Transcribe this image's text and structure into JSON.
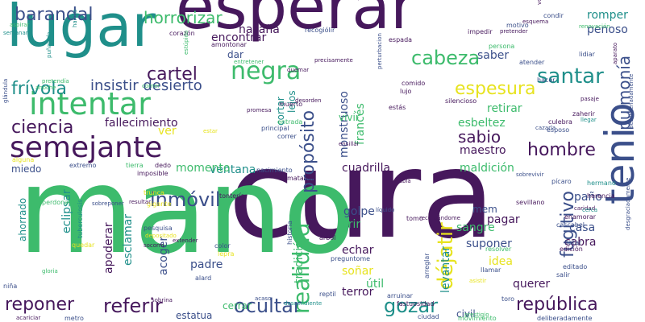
{
  "palette": {
    "dark_purple": "#46185c",
    "indigo": "#3b4f8a",
    "teal": "#1f8f8a",
    "green": "#3dbb6c",
    "lime": "#93d14b",
    "yellow": "#e7e31f"
  },
  "words": [
    {
      "text": "cura",
      "weight": 100,
      "color": "#46185c"
    },
    {
      "text": "mano",
      "weight": 96,
      "color": "#3dbb6c"
    },
    {
      "text": "esperar",
      "weight": 62,
      "color": "#46185c"
    },
    {
      "text": "lugar",
      "weight": 58,
      "color": "#1f8f8a"
    },
    {
      "text": "tenio",
      "weight": 40,
      "color": "#3b4f8a"
    },
    {
      "text": "intentar",
      "weight": 36,
      "color": "#3dbb6c"
    },
    {
      "text": "semejante",
      "weight": 34,
      "color": "#46185c"
    },
    {
      "text": "realidad",
      "weight": 26,
      "color": "#3dbb6c"
    },
    {
      "text": "déjatir",
      "weight": 24,
      "color": "#e7e31f"
    },
    {
      "text": "negra",
      "weight": 24,
      "color": "#3dbb6c"
    },
    {
      "text": "santar",
      "weight": 22,
      "color": "#1f8f8a"
    },
    {
      "text": "cabeza",
      "weight": 20,
      "color": "#3dbb6c"
    },
    {
      "text": "barandal",
      "weight": 20,
      "color": "#3b4f8a"
    },
    {
      "text": "ciencia",
      "weight": 20,
      "color": "#46185c"
    },
    {
      "text": "frívola",
      "weight": 20,
      "color": "#1f8f8a"
    },
    {
      "text": "cartel",
      "weight": 20,
      "color": "#46185c"
    },
    {
      "text": "pulmonía",
      "weight": 20,
      "color": "#3b4f8a"
    },
    {
      "text": "hombre",
      "weight": 20,
      "color": "#46185c"
    },
    {
      "text": "inmóvil",
      "weight": 20,
      "color": "#3b4f8a"
    },
    {
      "text": "referir",
      "weight": 20,
      "color": "#46185c"
    },
    {
      "text": "ocultar",
      "weight": 20,
      "color": "#3b4f8a"
    },
    {
      "text": "gozar",
      "weight": 20,
      "color": "#1f8f8a"
    },
    {
      "text": "república",
      "weight": 20,
      "color": "#46185c"
    },
    {
      "text": "reponer",
      "weight": 20,
      "color": "#46185c"
    },
    {
      "text": "fugitivo",
      "weight": 20,
      "color": "#3b4f8a"
    },
    {
      "text": "propósito",
      "weight": 20,
      "color": "#3b4f8a"
    },
    {
      "text": "espesura",
      "weight": 18,
      "color": "#e7e31f"
    },
    {
      "text": "horrorizar",
      "weight": 18,
      "color": "#3dbb6c"
    },
    {
      "text": "sabio",
      "weight": 17,
      "color": "#46185c"
    },
    {
      "text": "insistir desierto",
      "weight": 15,
      "color": "#3b4f8a"
    },
    {
      "text": "hazaña",
      "weight": 13,
      "color": "#46185c"
    },
    {
      "text": "encontrar",
      "weight": 13,
      "color": "#46185c"
    },
    {
      "text": "fallecimiento",
      "weight": 13,
      "color": "#46185c"
    },
    {
      "text": "esbeltez",
      "weight": 13,
      "color": "#3dbb6c"
    },
    {
      "text": "maestro",
      "weight": 13,
      "color": "#46185c"
    },
    {
      "text": "monstruoso",
      "weight": 13,
      "color": "#3b4f8a"
    },
    {
      "text": "francés",
      "weight": 13,
      "color": "#3dbb6c"
    },
    {
      "text": "retirar",
      "weight": 13,
      "color": "#3dbb6c"
    },
    {
      "text": "saber",
      "weight": 12,
      "color": "#3b4f8a"
    },
    {
      "text": "penoso",
      "weight": 12,
      "color": "#3b4f8a"
    },
    {
      "text": "romper",
      "weight": 12,
      "color": "#1f8f8a"
    },
    {
      "text": "cuadrilla",
      "weight": 12,
      "color": "#46185c"
    },
    {
      "text": "maldición",
      "weight": 12,
      "color": "#3dbb6c"
    },
    {
      "text": "ventana",
      "weight": 12,
      "color": "#1f8f8a"
    },
    {
      "text": "momento",
      "weight": 12,
      "color": "#3dbb6c"
    },
    {
      "text": "eclipsar",
      "weight": 12,
      "color": "#1f8f8a"
    },
    {
      "text": "apoderar",
      "weight": 12,
      "color": "#46185c"
    },
    {
      "text": "esclamar",
      "weight": 12,
      "color": "#1f8f8a"
    },
    {
      "text": "acoger",
      "weight": 12,
      "color": "#3b4f8a"
    },
    {
      "text": "padre",
      "weight": 12,
      "color": "#3b4f8a"
    },
    {
      "text": "golpe",
      "weight": 12,
      "color": "#3b4f8a"
    },
    {
      "text": "sangre",
      "weight": 12,
      "color": "#3dbb6c"
    },
    {
      "text": "suponer",
      "weight": 12,
      "color": "#3b4f8a"
    },
    {
      "text": "pagar",
      "weight": 12,
      "color": "#46185c"
    },
    {
      "text": "casa",
      "weight": 12,
      "color": "#3b4f8a"
    },
    {
      "text": "paño",
      "weight": 12,
      "color": "#3b4f8a"
    },
    {
      "text": "cabra",
      "weight": 12,
      "color": "#46185c"
    },
    {
      "text": "idea",
      "weight": 12,
      "color": "#e7e31f"
    },
    {
      "text": "echar",
      "weight": 12,
      "color": "#46185c"
    },
    {
      "text": "soñar",
      "weight": 12,
      "color": "#e7e31f"
    },
    {
      "text": "útil",
      "weight": 12,
      "color": "#3dbb6c"
    },
    {
      "text": "terror",
      "weight": 12,
      "color": "#46185c"
    },
    {
      "text": "querer",
      "weight": 12,
      "color": "#46185c"
    },
    {
      "text": "levantar",
      "weight": 12,
      "color": "#1f8f8a"
    },
    {
      "text": "tradición",
      "weight": 12,
      "color": "#3dbb6c"
    },
    {
      "text": "crir",
      "weight": 12,
      "color": "#3dbb6c"
    },
    {
      "text": "mem",
      "weight": 10,
      "color": "#3b4f8a"
    },
    {
      "text": "dar",
      "weight": 10,
      "color": "#3b4f8a"
    },
    {
      "text": "lejos",
      "weight": 10,
      "color": "#1f8f8a"
    },
    {
      "text": "miedo",
      "weight": 10,
      "color": "#3b4f8a"
    },
    {
      "text": "ahorrado",
      "weight": 10,
      "color": "#1f8f8a"
    },
    {
      "text": "cerrar",
      "weight": 10,
      "color": "#3dbb6c"
    },
    {
      "text": "estatua",
      "weight": 10,
      "color": "#3b4f8a"
    },
    {
      "text": "civil",
      "weight": 10,
      "color": "#3b4f8a"
    },
    {
      "text": "ver",
      "weight": 10,
      "color": "#e7e31f"
    },
    {
      "text": "vivir",
      "weight": 10,
      "color": "#3dbb6c"
    },
    {
      "text": "cortar",
      "weight": 10,
      "color": "#1f8f8a"
    },
    {
      "text": "impedir",
      "weight": 6,
      "color": "#46185c"
    },
    {
      "text": "espada",
      "weight": 6,
      "color": "#46185c"
    },
    {
      "text": "recogiólir",
      "weight": 6,
      "color": "#3b4f8a"
    },
    {
      "text": "amontonar",
      "weight": 6,
      "color": "#46185c"
    },
    {
      "text": "corazón",
      "weight": 6,
      "color": "#46185c"
    },
    {
      "text": "comido",
      "weight": 6,
      "color": "#46185c"
    },
    {
      "text": "lujo",
      "weight": 6,
      "color": "#46185c"
    },
    {
      "text": "estás",
      "weight": 6,
      "color": "#46185c"
    },
    {
      "text": "silencioso",
      "weight": 6,
      "color": "#46185c"
    },
    {
      "text": "culebra",
      "weight": 6,
      "color": "#46185c"
    },
    {
      "text": "esposo",
      "weight": 6,
      "color": "#3b4f8a"
    },
    {
      "text": "atender",
      "weight": 6,
      "color": "#3b4f8a"
    },
    {
      "text": "hacer",
      "weight": 6,
      "color": "#3b4f8a"
    },
    {
      "text": "lidiar",
      "weight": 6,
      "color": "#3b4f8a"
    },
    {
      "text": "persona",
      "weight": 6,
      "color": "#3dbb6c"
    },
    {
      "text": "motivo",
      "weight": 6,
      "color": "#3b4f8a"
    },
    {
      "text": "condir",
      "weight": 6,
      "color": "#3b4f8a"
    },
    {
      "text": "zaherir",
      "weight": 6,
      "color": "#46185c"
    },
    {
      "text": "muerto",
      "weight": 6,
      "color": "#46185c"
    },
    {
      "text": "entrada",
      "weight": 6,
      "color": "#3dbb6c"
    },
    {
      "text": "principal",
      "weight": 6,
      "color": "#3b4f8a"
    },
    {
      "text": "correr",
      "weight": 6,
      "color": "#3b4f8a"
    },
    {
      "text": "matador",
      "weight": 6,
      "color": "#46185c"
    },
    {
      "text": "nacimiento",
      "weight": 6,
      "color": "#3b4f8a"
    },
    {
      "text": "imposible",
      "weight": 6,
      "color": "#46185c"
    },
    {
      "text": "tierra",
      "weight": 6,
      "color": "#3dbb6c"
    },
    {
      "text": "dedo",
      "weight": 6,
      "color": "#46185c"
    },
    {
      "text": "extremo",
      "weight": 6,
      "color": "#3b4f8a"
    },
    {
      "text": "trunca",
      "weight": 6,
      "color": "#e7e31f"
    },
    {
      "text": "gigante",
      "weight": 6,
      "color": "#e7e31f"
    },
    {
      "text": "tontería",
      "weight": 6,
      "color": "#46185c"
    },
    {
      "text": "pesquisa",
      "weight": 6,
      "color": "#3b4f8a"
    },
    {
      "text": "tuberculosis",
      "weight": 6,
      "color": "#1f8f8a"
    },
    {
      "text": "color",
      "weight": 6,
      "color": "#3b4f8a"
    },
    {
      "text": "lepra",
      "weight": 6,
      "color": "#e7e31f"
    },
    {
      "text": "alard",
      "weight": 6,
      "color": "#3b4f8a"
    },
    {
      "text": "historia",
      "weight": 6,
      "color": "#3b4f8a"
    },
    {
      "text": "árbol",
      "weight": 6,
      "color": "#46185c"
    },
    {
      "text": "preguntome",
      "weight": 6,
      "color": "#3b4f8a"
    },
    {
      "text": "resolver",
      "weight": 6,
      "color": "#3dbb6c"
    },
    {
      "text": "llamar",
      "weight": 6,
      "color": "#3b4f8a"
    },
    {
      "text": "arreglar",
      "weight": 6,
      "color": "#3b4f8a"
    },
    {
      "text": "salir",
      "weight": 6,
      "color": "#3b4f8a"
    },
    {
      "text": "tomo",
      "weight": 6,
      "color": "#46185c"
    },
    {
      "text": "sevillano",
      "weight": 6,
      "color": "#46185c"
    },
    {
      "text": "enamorar",
      "weight": 6,
      "color": "#46185c"
    },
    {
      "text": "cascabel",
      "weight": 6,
      "color": "#3b4f8a"
    },
    {
      "text": "flotar",
      "weight": 6,
      "color": "#3b4f8a"
    },
    {
      "text": "edición",
      "weight": 6,
      "color": "#46185c"
    },
    {
      "text": "editado",
      "weight": 6,
      "color": "#3b4f8a"
    },
    {
      "text": "pícaro",
      "weight": 6,
      "color": "#3b4f8a"
    },
    {
      "text": "hermano",
      "weight": 6,
      "color": "#1f8f8a"
    },
    {
      "text": "herencia",
      "weight": 6,
      "color": "#46185c"
    },
    {
      "text": "niña",
      "weight": 6,
      "color": "#3b4f8a"
    },
    {
      "text": "reptil",
      "weight": 6,
      "color": "#3b4f8a"
    },
    {
      "text": "arruinar",
      "weight": 6,
      "color": "#3b4f8a"
    },
    {
      "text": "fastuosidad",
      "weight": 6,
      "color": "#46185c"
    },
    {
      "text": "ciudad",
      "weight": 6,
      "color": "#3b4f8a"
    },
    {
      "text": "movimiento",
      "weight": 6,
      "color": "#3dbb6c"
    },
    {
      "text": "toro",
      "weight": 6,
      "color": "#3b4f8a"
    },
    {
      "text": "deliberadamente",
      "weight": 6,
      "color": "#3b4f8a"
    },
    {
      "text": "metro",
      "weight": 6,
      "color": "#3b4f8a"
    },
    {
      "text": "glándula",
      "weight": 6,
      "color": "#3b4f8a"
    },
    {
      "text": "desgraciadamente",
      "weight": 6,
      "color": "#3b4f8a"
    },
    {
      "text": "desordenadamente",
      "weight": 6,
      "color": "#3b4f8a"
    },
    {
      "text": "pretendía",
      "weight": 5,
      "color": "#3dbb6c"
    },
    {
      "text": "anoche",
      "weight": 5,
      "color": "#3dbb6c"
    },
    {
      "text": "comer",
      "weight": 5,
      "color": "#3dbb6c"
    },
    {
      "text": "estúpido",
      "weight": 5,
      "color": "#3dbb6c"
    },
    {
      "text": "puñalada",
      "weight": 5,
      "color": "#1f8f8a"
    },
    {
      "text": "harina",
      "weight": 5,
      "color": "#1f8f8a"
    },
    {
      "text": "perturbacion",
      "weight": 5,
      "color": "#3b4f8a"
    },
    {
      "text": "voluntad",
      "weight": 5,
      "color": "#46185c"
    },
    {
      "text": "estar",
      "weight": 5,
      "color": "#e7e31f"
    },
    {
      "text": "promesa",
      "weight": 5,
      "color": "#46185c"
    },
    {
      "text": "aparato",
      "weight": 5,
      "color": "#46185c"
    },
    {
      "text": "resultar",
      "weight": 5,
      "color": "#46185c"
    },
    {
      "text": "sobreponer",
      "weight": 5,
      "color": "#3b4f8a"
    },
    {
      "text": "socorro",
      "weight": 5,
      "color": "#46185c"
    },
    {
      "text": "gloria",
      "weight": 5,
      "color": "#3dbb6c"
    },
    {
      "text": "prestigio",
      "weight": 5,
      "color": "#3dbb6c"
    },
    {
      "text": "sobrina",
      "weight": 5,
      "color": "#46185c"
    },
    {
      "text": "acariciar",
      "weight": 5,
      "color": "#46185c"
    },
    {
      "text": "extender",
      "weight": 5,
      "color": "#46185c"
    },
    {
      "text": "depositado",
      "weight": 5,
      "color": "#e7e31f"
    },
    {
      "text": "entretener",
      "weight": 5,
      "color": "#3dbb6c"
    },
    {
      "text": "precisamente",
      "weight": 5,
      "color": "#46185c"
    },
    {
      "text": "pretender",
      "weight": 5,
      "color": "#46185c"
    },
    {
      "text": "semanar",
      "weight": 5,
      "color": "#1f8f8a"
    },
    {
      "text": "desorden",
      "weight": 5,
      "color": "#46185c"
    },
    {
      "text": "quemar",
      "weight": 5,
      "color": "#46185c"
    },
    {
      "text": "esquema",
      "weight": 5,
      "color": "#46185c"
    },
    {
      "text": "pasaje",
      "weight": 5,
      "color": "#46185c"
    },
    {
      "text": "llegar",
      "weight": 5,
      "color": "#1f8f8a"
    },
    {
      "text": "cazarla",
      "weight": 5,
      "color": "#3b4f8a"
    },
    {
      "text": "ensillar",
      "weight": 5,
      "color": "#46185c"
    },
    {
      "text": "duda",
      "weight": 5,
      "color": "#46185c"
    },
    {
      "text": "tabla",
      "weight": 5,
      "color": "#46185c"
    },
    {
      "text": "líquido",
      "weight": 5,
      "color": "#3b4f8a"
    },
    {
      "text": "acaso",
      "weight": 5,
      "color": "#3b4f8a"
    },
    {
      "text": "descendiente",
      "weight": 5,
      "color": "#1f8f8a"
    },
    {
      "text": "asistir",
      "weight": 5,
      "color": "#e7e31f"
    },
    {
      "text": "recordándome",
      "weight": 5,
      "color": "#46185c"
    },
    {
      "text": "renovación",
      "weight": 5,
      "color": "#3dbb6c"
    },
    {
      "text": "aspirar",
      "weight": 5,
      "color": "#3dbb6c"
    },
    {
      "text": "sobrevivir",
      "weight": 5,
      "color": "#3b4f8a"
    },
    {
      "text": "caridad",
      "weight": 5,
      "color": "#46185c"
    },
    {
      "text": "cerca",
      "weight": 5,
      "color": "#1f8f8a"
    },
    {
      "text": "alguna",
      "weight": 5,
      "color": "#e7e31f"
    },
    {
      "text": "perdonar",
      "weight": 5,
      "color": "#3dbb6c"
    },
    {
      "text": "quedar",
      "weight": 5,
      "color": "#e7e31f"
    }
  ]
}
